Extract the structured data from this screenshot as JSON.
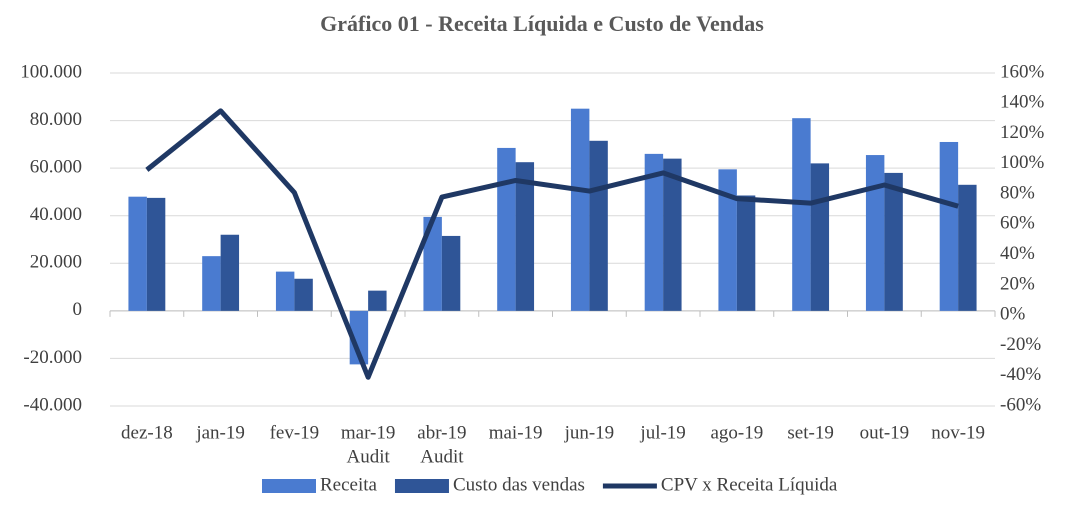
{
  "chart_data": {
    "type": "bar-line",
    "title": "Gráfico 01 - Receita Líquida e Custo de Vendas",
    "categories": [
      "dez-18",
      "jan-19",
      "fev-19",
      [
        "mar-19",
        "Audit"
      ],
      [
        "abr-19",
        "Audit"
      ],
      "mai-19",
      "jun-19",
      "jul-19",
      "ago-19",
      "set-19",
      "out-19",
      "nov-19"
    ],
    "series": [
      {
        "name": "Receita",
        "type": "bar",
        "color": "#4a7bd0",
        "values": [
          48000,
          23000,
          16500,
          -22500,
          39500,
          68500,
          85000,
          66000,
          59500,
          81000,
          65500,
          71000
        ]
      },
      {
        "name": "Custo das vendas",
        "type": "bar",
        "color": "#2f5597",
        "values": [
          47500,
          32000,
          13500,
          8500,
          31500,
          62500,
          71500,
          64000,
          48500,
          62000,
          58000,
          53000
        ]
      },
      {
        "name": "CPV x Receita Líquida",
        "type": "line",
        "axis": "y2",
        "color": "#1f3864",
        "values": [
          96,
          135,
          81,
          -41,
          78,
          89,
          82,
          94,
          77,
          74,
          86,
          72
        ]
      }
    ],
    "ylim": [
      -40000,
      100000
    ],
    "yticks": [
      {
        "value": -40000,
        "label": "-40.000"
      },
      {
        "value": -20000,
        "label": "-20.000"
      },
      0,
      {
        "value": 20000,
        "label": "20.000"
      },
      {
        "value": 40000,
        "label": "40.000"
      },
      {
        "value": 60000,
        "label": "60.000"
      },
      {
        "value": 80000,
        "label": "80.000"
      },
      {
        "value": 100000,
        "label": "100.000"
      }
    ],
    "y2lim": [
      -60,
      160
    ],
    "y2ticks": [
      {
        "value": -60,
        "label": "-60%"
      },
      {
        "value": -40,
        "label": "-40%"
      },
      {
        "value": -20,
        "label": "-20%"
      },
      {
        "value": 0,
        "label": "0%"
      },
      {
        "value": 20,
        "label": "20%"
      },
      {
        "value": 40,
        "label": "40%"
      },
      {
        "value": 60,
        "label": "60%"
      },
      {
        "value": 80,
        "label": "80%"
      },
      {
        "value": 100,
        "label": "100%"
      },
      {
        "value": 120,
        "label": "120%"
      },
      {
        "value": 140,
        "label": "140%"
      },
      {
        "value": 160,
        "label": "160%"
      }
    ],
    "grid": true,
    "legend": "bottom"
  }
}
